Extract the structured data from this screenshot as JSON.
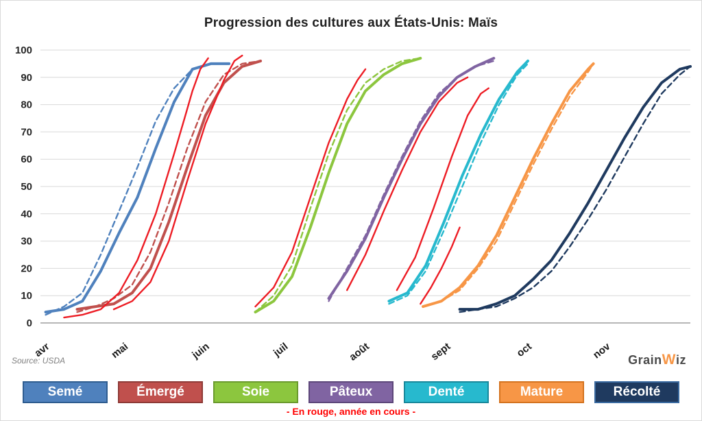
{
  "source": "Source: USDA",
  "note": "- En rouge, année en cours -",
  "logo": {
    "grain": "Grain",
    "w": "W",
    "iz": "iz"
  },
  "chart_data": {
    "type": "line",
    "title": "Progression des cultures aux États-Unis: Maïs",
    "xlabel": "",
    "ylabel": "",
    "ylim": [
      0,
      100
    ],
    "y_ticks": [
      0,
      10,
      20,
      30,
      40,
      50,
      60,
      70,
      80,
      90,
      100
    ],
    "x_unit": "days_from_april_1",
    "x_domain": [
      0,
      248
    ],
    "x_ticks": [
      {
        "label": "avr",
        "day": 0
      },
      {
        "label": "mai",
        "day": 30
      },
      {
        "label": "juin",
        "day": 61
      },
      {
        "label": "juil",
        "day": 91
      },
      {
        "label": "août",
        "day": 122
      },
      {
        "label": "sept",
        "day": 153
      },
      {
        "label": "oct",
        "day": 184
      },
      {
        "label": "nov",
        "day": 214
      }
    ],
    "grid": "horizontal",
    "legend_position": "bottom",
    "current_year_color": "#ed1c24",
    "series": [
      {
        "key": "seme",
        "name": "Semé",
        "color": "#4f81bd",
        "border": "#2e5c8f",
        "dashed": [
          [
            2,
            3
          ],
          [
            9,
            6
          ],
          [
            16,
            11
          ],
          [
            23,
            25
          ],
          [
            30,
            41
          ],
          [
            37,
            57
          ],
          [
            44,
            74
          ],
          [
            51,
            86
          ],
          [
            58,
            93
          ],
          [
            65,
            95
          ],
          [
            72,
            95
          ]
        ],
        "solid": [
          [
            2,
            4
          ],
          [
            9,
            5
          ],
          [
            16,
            8
          ],
          [
            23,
            19
          ],
          [
            30,
            33
          ],
          [
            37,
            46
          ],
          [
            44,
            64
          ],
          [
            51,
            81
          ],
          [
            58,
            93
          ],
          [
            65,
            95
          ],
          [
            72,
            95
          ]
        ],
        "current_year": [
          [
            9,
            2
          ],
          [
            16,
            3
          ],
          [
            23,
            5
          ],
          [
            30,
            11
          ],
          [
            37,
            23
          ],
          [
            44,
            40
          ],
          [
            51,
            62
          ],
          [
            55,
            75
          ],
          [
            58,
            85
          ],
          [
            61,
            93
          ],
          [
            64,
            97
          ]
        ]
      },
      {
        "key": "emerge",
        "name": "Émergé",
        "color": "#c0504d",
        "border": "#8e3a37",
        "dashed": [
          [
            14,
            4
          ],
          [
            21,
            6
          ],
          [
            28,
            9
          ],
          [
            35,
            14
          ],
          [
            42,
            26
          ],
          [
            49,
            44
          ],
          [
            56,
            64
          ],
          [
            63,
            81
          ],
          [
            70,
            91
          ],
          [
            77,
            95
          ],
          [
            84,
            96
          ]
        ],
        "solid": [
          [
            14,
            5
          ],
          [
            21,
            6
          ],
          [
            28,
            7
          ],
          [
            35,
            11
          ],
          [
            42,
            20
          ],
          [
            49,
            37
          ],
          [
            56,
            57
          ],
          [
            63,
            76
          ],
          [
            70,
            88
          ],
          [
            77,
            94
          ],
          [
            84,
            96
          ]
        ],
        "current_year": [
          [
            28,
            5
          ],
          [
            35,
            8
          ],
          [
            42,
            15
          ],
          [
            49,
            30
          ],
          [
            56,
            52
          ],
          [
            63,
            73
          ],
          [
            70,
            89
          ],
          [
            74,
            96
          ],
          [
            77,
            98
          ]
        ]
      },
      {
        "key": "soie",
        "name": "Soie",
        "color": "#8cc63e",
        "border": "#6a9a2d",
        "dashed": [
          [
            82,
            4
          ],
          [
            89,
            10
          ],
          [
            96,
            21
          ],
          [
            103,
            42
          ],
          [
            110,
            62
          ],
          [
            117,
            78
          ],
          [
            124,
            88
          ],
          [
            131,
            93
          ],
          [
            138,
            96
          ],
          [
            145,
            97
          ]
        ],
        "solid": [
          [
            82,
            4
          ],
          [
            89,
            8
          ],
          [
            96,
            17
          ],
          [
            103,
            35
          ],
          [
            110,
            55
          ],
          [
            117,
            73
          ],
          [
            124,
            85
          ],
          [
            131,
            91
          ],
          [
            138,
            95
          ],
          [
            145,
            97
          ]
        ],
        "current_year": [
          [
            82,
            6
          ],
          [
            89,
            13
          ],
          [
            96,
            26
          ],
          [
            103,
            46
          ],
          [
            110,
            66
          ],
          [
            117,
            82
          ],
          [
            121,
            89
          ],
          [
            124,
            93
          ]
        ]
      },
      {
        "key": "pateux",
        "name": "Pâteux",
        "color": "#8064a2",
        "border": "#5d477a",
        "dashed": [
          [
            110,
            8
          ],
          [
            117,
            20
          ],
          [
            124,
            32
          ],
          [
            131,
            47
          ],
          [
            138,
            61
          ],
          [
            145,
            74
          ],
          [
            152,
            84
          ],
          [
            159,
            90
          ],
          [
            166,
            94
          ],
          [
            173,
            96
          ]
        ],
        "solid": [
          [
            110,
            9
          ],
          [
            117,
            19
          ],
          [
            124,
            31
          ],
          [
            131,
            46
          ],
          [
            138,
            60
          ],
          [
            145,
            73
          ],
          [
            152,
            83
          ],
          [
            159,
            90
          ],
          [
            166,
            94
          ],
          [
            173,
            97
          ]
        ],
        "current_year": [
          [
            117,
            12
          ],
          [
            124,
            25
          ],
          [
            131,
            41
          ],
          [
            138,
            56
          ],
          [
            145,
            70
          ],
          [
            152,
            81
          ],
          [
            159,
            88
          ],
          [
            163,
            90
          ]
        ]
      },
      {
        "key": "dente",
        "name": "Denté",
        "color": "#27b9ce",
        "border": "#18889b",
        "dashed": [
          [
            133,
            7
          ],
          [
            140,
            10
          ],
          [
            147,
            19
          ],
          [
            154,
            34
          ],
          [
            161,
            50
          ],
          [
            168,
            66
          ],
          [
            175,
            80
          ],
          [
            182,
            91
          ],
          [
            186,
            95
          ]
        ],
        "solid": [
          [
            133,
            8
          ],
          [
            140,
            11
          ],
          [
            147,
            21
          ],
          [
            154,
            37
          ],
          [
            161,
            54
          ],
          [
            168,
            69
          ],
          [
            175,
            82
          ],
          [
            182,
            92
          ],
          [
            186,
            96
          ]
        ],
        "current_year": [
          [
            136,
            12
          ],
          [
            143,
            24
          ],
          [
            150,
            42
          ],
          [
            157,
            61
          ],
          [
            163,
            76
          ],
          [
            168,
            84
          ],
          [
            171,
            86
          ]
        ]
      },
      {
        "key": "mature",
        "name": "Mature",
        "color": "#f79646",
        "border": "#d4731f",
        "dashed": [
          [
            146,
            6
          ],
          [
            153,
            8
          ],
          [
            160,
            12
          ],
          [
            167,
            20
          ],
          [
            174,
            30
          ],
          [
            181,
            44
          ],
          [
            188,
            58
          ],
          [
            195,
            71
          ],
          [
            202,
            83
          ],
          [
            209,
            92
          ],
          [
            211,
            95
          ]
        ],
        "solid": [
          [
            146,
            6
          ],
          [
            153,
            8
          ],
          [
            160,
            13
          ],
          [
            167,
            21
          ],
          [
            174,
            32
          ],
          [
            181,
            46
          ],
          [
            188,
            60
          ],
          [
            195,
            73
          ],
          [
            202,
            85
          ],
          [
            209,
            93
          ],
          [
            211,
            95
          ]
        ],
        "current_year": [
          [
            145,
            7
          ],
          [
            149,
            13
          ],
          [
            153,
            20
          ],
          [
            157,
            28
          ],
          [
            160,
            35
          ]
        ]
      },
      {
        "key": "recolte",
        "name": "Récolté",
        "color": "#1f3a5f",
        "border": "#3a6aa0",
        "dashed": [
          [
            160,
            4
          ],
          [
            167,
            5
          ],
          [
            174,
            6
          ],
          [
            181,
            9
          ],
          [
            188,
            13
          ],
          [
            195,
            19
          ],
          [
            202,
            28
          ],
          [
            209,
            38
          ],
          [
            216,
            49
          ],
          [
            223,
            61
          ],
          [
            230,
            73
          ],
          [
            237,
            84
          ],
          [
            244,
            91
          ],
          [
            248,
            94
          ]
        ],
        "solid": [
          [
            160,
            5
          ],
          [
            167,
            5
          ],
          [
            174,
            7
          ],
          [
            181,
            10
          ],
          [
            188,
            16
          ],
          [
            195,
            23
          ],
          [
            202,
            33
          ],
          [
            209,
            44
          ],
          [
            216,
            56
          ],
          [
            223,
            68
          ],
          [
            230,
            79
          ],
          [
            237,
            88
          ],
          [
            244,
            93
          ],
          [
            248,
            94
          ]
        ]
      }
    ]
  }
}
